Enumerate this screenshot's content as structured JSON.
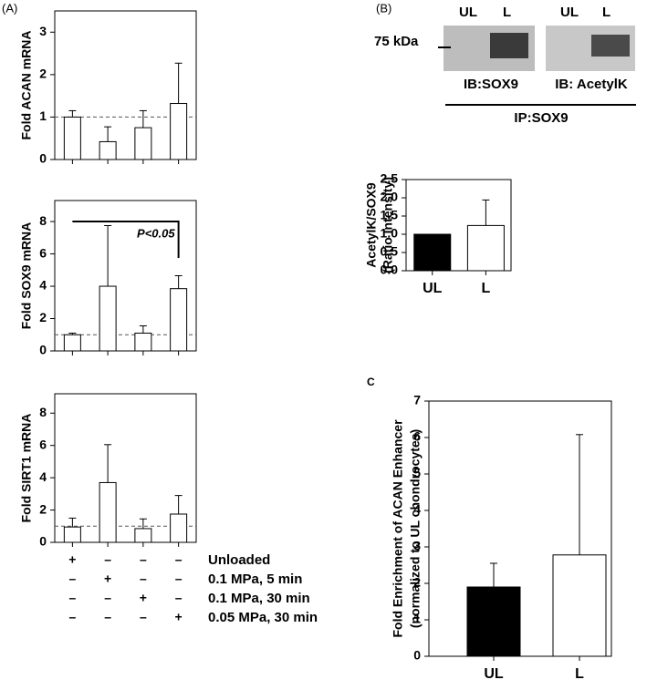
{
  "panels": {
    "A": "(A)",
    "B": "(B)",
    "C": "C"
  },
  "blot": {
    "lanes": [
      "UL",
      "L",
      "UL",
      "L"
    ],
    "marker": "75 kDa",
    "ib": [
      "IB:SOX9",
      "IB: AcetylK"
    ],
    "ip": "IP:SOX9"
  },
  "conditions": [
    {
      "label": "Unloaded",
      "signs": [
        "+",
        "–",
        "–",
        "–"
      ]
    },
    {
      "label": "0.1 MPa, 5 min",
      "signs": [
        "–",
        "+",
        "–",
        "–"
      ]
    },
    {
      "label": "0.1 MPa, 30 min",
      "signs": [
        "–",
        "–",
        "+",
        "–"
      ]
    },
    {
      "label": "0.05 MPa, 30 min",
      "signs": [
        "–",
        "–",
        "–",
        "+"
      ]
    }
  ],
  "chart_data": [
    {
      "type": "bar",
      "y_label": [
        "Fold ACAN mRNA"
      ],
      "values": [
        1.0,
        0.42,
        0.75,
        1.32
      ],
      "errors": [
        0.15,
        0.35,
        0.4,
        0.95
      ],
      "colors": [
        "#ffffff",
        "#ffffff",
        "#ffffff",
        "#ffffff"
      ],
      "ylim": [
        0,
        3.5
      ],
      "yticks": [
        0,
        1,
        2,
        3
      ],
      "ref_line": 1
    },
    {
      "type": "bar",
      "y_label": [
        "Fold SOX9 mRNA"
      ],
      "values": [
        1.0,
        4.0,
        1.1,
        3.85
      ],
      "errors": [
        0.1,
        3.75,
        0.45,
        0.8
      ],
      "colors": [
        "#ffffff",
        "#ffffff",
        "#ffffff",
        "#ffffff"
      ],
      "ylim": [
        0,
        9.3
      ],
      "yticks": [
        0,
        2,
        4,
        6,
        8
      ],
      "ref_line": 1,
      "annotation": "P<0.05"
    },
    {
      "type": "bar",
      "y_label": [
        "Fold SIRT1 mRNA"
      ],
      "values": [
        0.95,
        3.7,
        0.85,
        1.75
      ],
      "errors": [
        0.55,
        2.35,
        0.6,
        1.15
      ],
      "colors": [
        "#ffffff",
        "#ffffff",
        "#ffffff",
        "#ffffff"
      ],
      "ylim": [
        0,
        9.2
      ],
      "yticks": [
        0,
        2,
        4,
        6,
        8
      ],
      "ref_line": 1
    },
    {
      "type": "bar",
      "y_label": [
        "AcetylK/SOX9",
        "(Ratio Intensity)"
      ],
      "categories": [
        "UL",
        "L"
      ],
      "values": [
        1.0,
        1.24
      ],
      "errors": [
        null,
        0.7
      ],
      "colors": [
        "#000000",
        "#ffffff"
      ],
      "ylim": [
        0,
        2.5
      ],
      "yticks": [
        {
          "value": 0,
          "label": "0.0"
        },
        {
          "value": 0.5,
          "label": "0.5"
        },
        {
          "value": 1,
          "label": "1.0"
        },
        {
          "value": 1.5,
          "label": "1.5"
        },
        {
          "value": 2,
          "label": "2.0"
        },
        {
          "value": 2.5,
          "label": "2.5"
        }
      ]
    },
    {
      "type": "bar",
      "y_label": [
        "Fold Enrichment of ACAN Enhancer",
        "(normalized to UL chondrocytes)"
      ],
      "categories": [
        "UL",
        "L"
      ],
      "values": [
        1.9,
        2.78
      ],
      "errors": [
        0.65,
        3.3
      ],
      "colors": [
        "#000000",
        "#ffffff"
      ],
      "ylim": [
        0,
        7
      ],
      "yticks": [
        0,
        1,
        2,
        3,
        4,
        5,
        6,
        7
      ]
    }
  ]
}
